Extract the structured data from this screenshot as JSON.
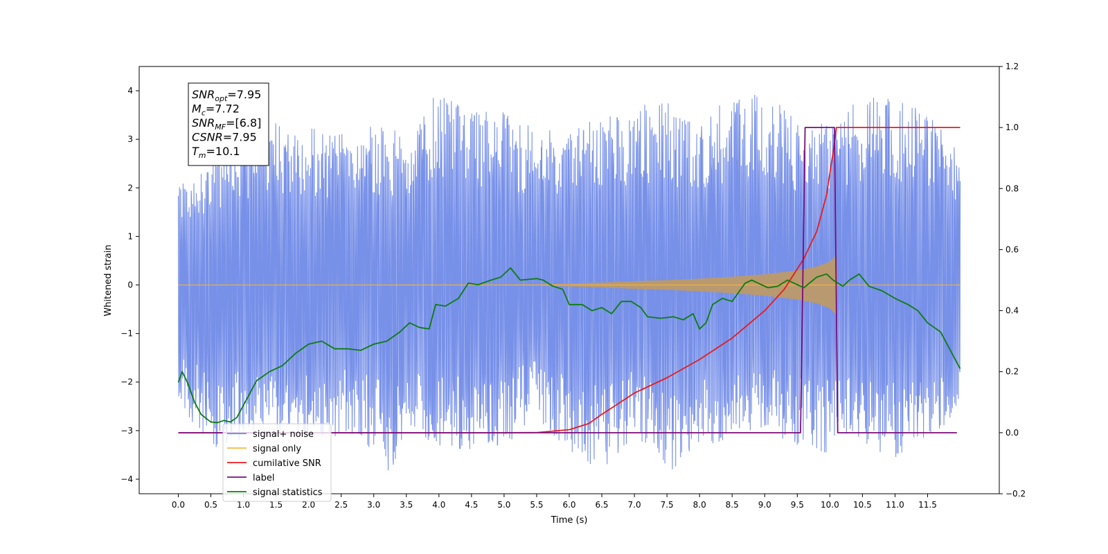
{
  "chart_data": {
    "type": "line",
    "xlabel": "Time (s)",
    "ylabel": "Whitened strain",
    "xlim": [
      -0.6,
      12.6
    ],
    "ylim_left": [
      -4.3,
      4.5
    ],
    "ylim_right": [
      -0.2,
      1.2
    ],
    "x_ticks": [
      0.0,
      0.5,
      1.0,
      1.5,
      2.0,
      2.5,
      3.0,
      3.5,
      4.0,
      4.5,
      5.0,
      5.5,
      6.0,
      6.5,
      7.0,
      7.5,
      8.0,
      8.5,
      9.0,
      9.5,
      10.0,
      10.5,
      11.0,
      11.5
    ],
    "x_tick_labels": [
      "0.0",
      "0.5",
      "1.0",
      "1.5",
      "2.0",
      "2.5",
      "3.0",
      "3.5",
      "4.0",
      "4.5",
      "5.0",
      "5.5",
      "6.0",
      "6.5",
      "7.0",
      "7.5",
      "8.0",
      "8.5",
      "9.0",
      "9.5",
      "10.0",
      "10.5",
      "11.0",
      "11.5"
    ],
    "y_left_ticks": [
      -4,
      -3,
      -2,
      -1,
      0,
      1,
      2,
      3,
      4
    ],
    "y_left_tick_labels": [
      "−4",
      "−3",
      "−2",
      "−1",
      "0",
      "1",
      "2",
      "3",
      "4"
    ],
    "y_right_ticks": [
      -0.2,
      0.0,
      0.2,
      0.4,
      0.6,
      0.8,
      1.0,
      1.2
    ],
    "y_right_tick_labels": [
      "−0.2",
      "0.0",
      "0.2",
      "0.4",
      "0.6",
      "0.8",
      "1.0",
      "1.2"
    ],
    "grid": false,
    "legend_position": "bottom-left",
    "annotation_box": {
      "position": "top-left",
      "lines": [
        {
          "sym": "SNR",
          "sub": "opt",
          "rest": "=7.95"
        },
        {
          "sym": "M",
          "sub": "c",
          "rest": "=7.72"
        },
        {
          "sym": "SNR",
          "sub": "MF",
          "rest": "=[6.8]"
        },
        {
          "sym": "CSNR",
          "sub": "",
          "rest": "=7.95"
        },
        {
          "sym": "T",
          "sub": "m",
          "rest": "=10.1"
        }
      ]
    },
    "series": [
      {
        "name": "signal+ noise",
        "axis": "left",
        "color": "#6b87e6",
        "description_range": [
          0.0,
          12.0
        ],
        "envelope_upper": [
          [
            0.0,
            2.2
          ],
          [
            0.5,
            2.7
          ],
          [
            1.0,
            3.2
          ],
          [
            1.5,
            3.4
          ],
          [
            2.0,
            3.3
          ],
          [
            2.5,
            3.1
          ],
          [
            3.0,
            3.3
          ],
          [
            3.5,
            3.3
          ],
          [
            4.0,
            4.0
          ],
          [
            4.5,
            3.6
          ],
          [
            5.0,
            3.6
          ],
          [
            5.5,
            3.2
          ],
          [
            6.0,
            3.3
          ],
          [
            6.5,
            3.4
          ],
          [
            7.0,
            3.7
          ],
          [
            7.5,
            3.8
          ],
          [
            8.0,
            3.3
          ],
          [
            8.5,
            4.0
          ],
          [
            9.0,
            4.1
          ],
          [
            9.5,
            3.4
          ],
          [
            10.0,
            3.3
          ],
          [
            10.5,
            3.9
          ],
          [
            11.0,
            3.9
          ],
          [
            11.5,
            3.6
          ],
          [
            12.0,
            2.7
          ]
        ],
        "envelope_lower": [
          [
            0.0,
            -2.4
          ],
          [
            0.5,
            -3.4
          ],
          [
            1.0,
            -3.2
          ],
          [
            1.5,
            -3.1
          ],
          [
            2.0,
            -3.2
          ],
          [
            2.5,
            -3.1
          ],
          [
            3.0,
            -3.4
          ],
          [
            3.3,
            -4.0
          ],
          [
            3.5,
            -3.0
          ],
          [
            4.0,
            -3.3
          ],
          [
            4.5,
            -3.5
          ],
          [
            5.0,
            -3.3
          ],
          [
            5.5,
            -2.8
          ],
          [
            6.0,
            -3.5
          ],
          [
            6.5,
            -3.8
          ],
          [
            7.0,
            -3.2
          ],
          [
            7.5,
            -3.9
          ],
          [
            8.0,
            -3.3
          ],
          [
            8.5,
            -3.3
          ],
          [
            9.0,
            -3.0
          ],
          [
            9.5,
            -3.3
          ],
          [
            10.0,
            -3.5
          ],
          [
            10.5,
            -3.3
          ],
          [
            11.0,
            -3.6
          ],
          [
            11.5,
            -3.1
          ],
          [
            12.0,
            -2.8
          ]
        ]
      },
      {
        "name": "signal only",
        "axis": "left",
        "color": "#f5b840",
        "fill_color": "#b9996f",
        "envelope": [
          [
            0.0,
            0.0
          ],
          [
            5.5,
            0.01
          ],
          [
            6.0,
            0.03
          ],
          [
            6.5,
            0.05
          ],
          [
            7.0,
            0.08
          ],
          [
            7.5,
            0.1
          ],
          [
            8.0,
            0.13
          ],
          [
            8.5,
            0.17
          ],
          [
            9.0,
            0.22
          ],
          [
            9.5,
            0.3
          ],
          [
            9.8,
            0.38
          ],
          [
            10.0,
            0.48
          ],
          [
            10.1,
            0.62
          ],
          [
            10.12,
            0.0
          ],
          [
            12.0,
            0.0
          ]
        ]
      },
      {
        "name": "cumilative SNR",
        "axis": "right",
        "color": "#e8191c",
        "points": [
          [
            0.0,
            0.0
          ],
          [
            5.0,
            0.0
          ],
          [
            5.5,
            0.0005
          ],
          [
            6.0,
            0.01
          ],
          [
            6.3,
            0.03
          ],
          [
            6.5,
            0.06
          ],
          [
            7.0,
            0.13
          ],
          [
            7.5,
            0.18
          ],
          [
            8.0,
            0.24
          ],
          [
            8.5,
            0.31
          ],
          [
            9.0,
            0.4
          ],
          [
            9.3,
            0.47
          ],
          [
            9.6,
            0.57
          ],
          [
            9.8,
            0.66
          ],
          [
            9.95,
            0.78
          ],
          [
            10.05,
            0.92
          ],
          [
            10.1,
            1.0
          ],
          [
            12.0,
            1.0
          ]
        ]
      },
      {
        "name": "label",
        "axis": "right",
        "color": "#7b0b7b",
        "points": [
          [
            0.0,
            0.0
          ],
          [
            9.55,
            0.0
          ],
          [
            9.62,
            1.0
          ],
          [
            10.07,
            1.0
          ],
          [
            10.12,
            0.0
          ],
          [
            11.95,
            0.0
          ]
        ]
      },
      {
        "name": "signal statistics",
        "axis": "right",
        "color": "#0c7c0c",
        "points": [
          [
            0.0,
            0.165
          ],
          [
            0.06,
            0.2
          ],
          [
            0.15,
            0.16
          ],
          [
            0.25,
            0.1
          ],
          [
            0.35,
            0.06
          ],
          [
            0.5,
            0.035
          ],
          [
            0.6,
            0.033
          ],
          [
            0.7,
            0.04
          ],
          [
            0.8,
            0.035
          ],
          [
            0.9,
            0.05
          ],
          [
            1.0,
            0.09
          ],
          [
            1.1,
            0.13
          ],
          [
            1.2,
            0.17
          ],
          [
            1.4,
            0.2
          ],
          [
            1.6,
            0.22
          ],
          [
            1.8,
            0.26
          ],
          [
            2.0,
            0.29
          ],
          [
            2.2,
            0.3
          ],
          [
            2.4,
            0.275
          ],
          [
            2.6,
            0.275
          ],
          [
            2.8,
            0.27
          ],
          [
            3.0,
            0.29
          ],
          [
            3.2,
            0.3
          ],
          [
            3.4,
            0.33
          ],
          [
            3.55,
            0.36
          ],
          [
            3.7,
            0.345
          ],
          [
            3.85,
            0.34
          ],
          [
            3.95,
            0.42
          ],
          [
            4.1,
            0.415
          ],
          [
            4.3,
            0.44
          ],
          [
            4.45,
            0.49
          ],
          [
            4.6,
            0.485
          ],
          [
            4.8,
            0.5
          ],
          [
            4.95,
            0.51
          ],
          [
            5.1,
            0.54
          ],
          [
            5.25,
            0.5
          ],
          [
            5.5,
            0.505
          ],
          [
            5.6,
            0.5
          ],
          [
            5.75,
            0.48
          ],
          [
            5.9,
            0.47
          ],
          [
            6.0,
            0.42
          ],
          [
            6.2,
            0.42
          ],
          [
            6.35,
            0.4
          ],
          [
            6.5,
            0.41
          ],
          [
            6.65,
            0.39
          ],
          [
            6.8,
            0.43
          ],
          [
            6.95,
            0.43
          ],
          [
            7.1,
            0.41
          ],
          [
            7.2,
            0.38
          ],
          [
            7.4,
            0.375
          ],
          [
            7.6,
            0.38
          ],
          [
            7.75,
            0.37
          ],
          [
            7.9,
            0.39
          ],
          [
            8.0,
            0.34
          ],
          [
            8.1,
            0.36
          ],
          [
            8.2,
            0.42
          ],
          [
            8.35,
            0.44
          ],
          [
            8.5,
            0.43
          ],
          [
            8.7,
            0.49
          ],
          [
            8.8,
            0.5
          ],
          [
            8.9,
            0.49
          ],
          [
            9.05,
            0.475
          ],
          [
            9.2,
            0.48
          ],
          [
            9.35,
            0.5
          ],
          [
            9.6,
            0.475
          ],
          [
            9.8,
            0.51
          ],
          [
            9.95,
            0.52
          ],
          [
            10.05,
            0.5
          ],
          [
            10.2,
            0.48
          ],
          [
            10.3,
            0.5
          ],
          [
            10.45,
            0.52
          ],
          [
            10.6,
            0.48
          ],
          [
            10.8,
            0.465
          ],
          [
            11.0,
            0.44
          ],
          [
            11.2,
            0.42
          ],
          [
            11.35,
            0.4
          ],
          [
            11.5,
            0.36
          ],
          [
            11.7,
            0.33
          ],
          [
            11.85,
            0.27
          ],
          [
            12.0,
            0.21
          ]
        ]
      }
    ]
  }
}
